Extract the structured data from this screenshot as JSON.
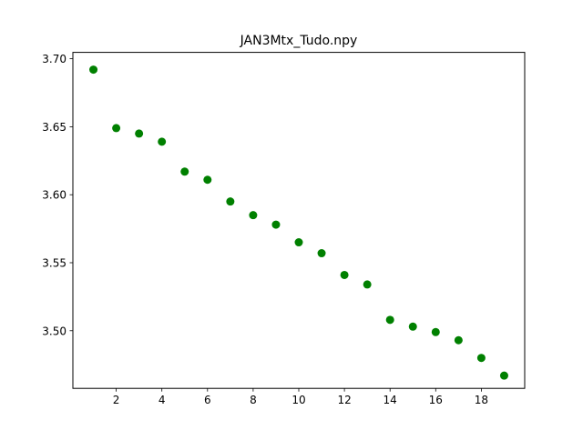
{
  "chart_data": {
    "type": "scatter",
    "title": "JAN3Mtx_Tudo.npy",
    "xlabel": "",
    "ylabel": "",
    "xlim": [
      0.1,
      19.9
    ],
    "ylim": [
      3.4576,
      3.7047
    ],
    "x_ticks": [
      2,
      4,
      6,
      8,
      10,
      12,
      14,
      16,
      18
    ],
    "x_tick_labels": [
      "2",
      "4",
      "6",
      "8",
      "10",
      "12",
      "14",
      "16",
      "18"
    ],
    "y_ticks": [
      3.5,
      3.55,
      3.6,
      3.65,
      3.7
    ],
    "y_tick_labels": [
      "3.50",
      "3.55",
      "3.60",
      "3.65",
      "3.70"
    ],
    "grid": false,
    "marker_color": "#008000",
    "series": [
      {
        "x": [
          1,
          2,
          3,
          4,
          5,
          6,
          7,
          8,
          9,
          10,
          11,
          12,
          13,
          14,
          15,
          16,
          17,
          18,
          19
        ],
        "values": [
          3.692,
          3.649,
          3.645,
          3.639,
          3.617,
          3.611,
          3.595,
          3.585,
          3.578,
          3.565,
          3.557,
          3.541,
          3.534,
          3.508,
          3.503,
          3.499,
          3.493,
          3.48,
          3.467
        ]
      }
    ]
  }
}
